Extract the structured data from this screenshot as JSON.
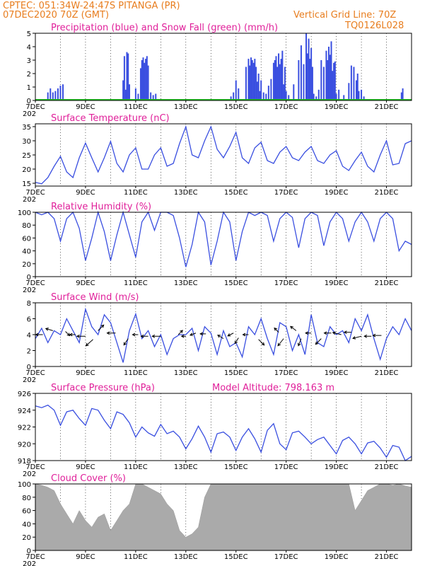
{
  "header": {
    "line1": "CPTEC:   051:34W-24:47S   PITANGA (PR)",
    "line2": "07DEC2020 70Z (GMT)",
    "grid_note": "Vertical Grid Line: 70Z",
    "code": "TQ0126L028"
  },
  "colors": {
    "header": "#e87d1e",
    "title": "#e0209a",
    "series": "#3a4fe0",
    "snow": "#20c020",
    "cloud": "#aaaaaa"
  },
  "x_axis": {
    "ticks": [
      "7DEC",
      "9DEC",
      "11DEC",
      "13DEC",
      "15DEC",
      "17DEC",
      "19DEC",
      "21DEC"
    ],
    "sub": [
      "202",
      "202",
      "202",
      "202",
      "202"
    ],
    "start_day": 7,
    "end_day": 22
  },
  "chart_data": [
    {
      "type": "bar",
      "title": "Precipitation (blue) and Snow Fall (green) (mm/h)",
      "ylim": [
        0,
        5
      ],
      "yticks": [
        "0",
        "1",
        "2",
        "3",
        "4",
        "5"
      ],
      "series": [
        {
          "name": "Precipitation",
          "x": [
            7.5,
            7.6,
            7.7,
            7.8,
            7.9,
            8.0,
            8.1,
            10.5,
            10.55,
            10.6,
            10.65,
            10.7,
            10.75,
            11.0,
            11.1,
            11.2,
            11.25,
            11.3,
            11.35,
            11.4,
            11.45,
            11.5,
            11.6,
            11.7,
            11.8,
            14.8,
            14.9,
            15.0,
            15.1,
            15.4,
            15.5,
            15.55,
            15.6,
            15.65,
            15.7,
            15.75,
            15.8,
            15.85,
            15.9,
            15.95,
            16.0,
            16.1,
            16.2,
            16.3,
            16.4,
            16.5,
            16.55,
            16.6,
            16.65,
            16.7,
            16.75,
            16.8,
            16.85,
            16.9,
            16.95,
            17.0,
            17.1,
            17.3,
            17.5,
            17.6,
            17.7,
            17.8,
            17.85,
            17.9,
            17.95,
            18.0,
            18.05,
            18.1,
            18.2,
            18.3,
            18.4,
            18.5,
            18.6,
            18.65,
            18.7,
            18.75,
            18.8,
            18.85,
            18.9,
            18.95,
            19.0,
            19.1,
            19.3,
            19.5,
            19.6,
            19.7,
            19.8,
            19.85,
            19.9,
            20.0,
            20.1,
            21.6,
            21.65
          ],
          "values": [
            0.6,
            0.9,
            0.6,
            0.7,
            0.9,
            1.1,
            1.2,
            1.5,
            3.3,
            0.8,
            3.6,
            3.5,
            1.2,
            0.9,
            0.5,
            2.4,
            3.0,
            3.2,
            2.8,
            3.1,
            3.3,
            2.6,
            0.6,
            0.4,
            0.5,
            0.3,
            0.6,
            1.5,
            0.9,
            2.5,
            3.1,
            2.6,
            3.2,
            3.0,
            2.8,
            3.1,
            2.5,
            1.4,
            2.0,
            0.7,
            1.5,
            0.6,
            0.5,
            1.1,
            1.6,
            2.8,
            3.0,
            3.3,
            2.5,
            3.5,
            2.7,
            3.1,
            3.7,
            1.2,
            2.5,
            0.7,
            0.4,
            1.2,
            3.0,
            4.1,
            2.7,
            5.0,
            3.5,
            4.6,
            3.1,
            3.9,
            2.5,
            0.5,
            0.3,
            0.8,
            3.0,
            2.5,
            3.7,
            3.0,
            4.0,
            3.4,
            4.4,
            2.2,
            2.8,
            2.9,
            0.5,
            0.8,
            0.4,
            1.3,
            2.6,
            2.5,
            1.5,
            2.0,
            0.7,
            0.8,
            0.3,
            0.6,
            0.9
          ]
        },
        {
          "name": "Snow Fall",
          "x": [],
          "values": []
        }
      ]
    },
    {
      "type": "line",
      "title": "Surface Temperature (nC)",
      "ylim": [
        14,
        36
      ],
      "yticks": [
        "15",
        "20",
        "25",
        "30",
        "35"
      ],
      "x": [
        7.0,
        7.25,
        7.5,
        7.75,
        8.0,
        8.25,
        8.5,
        8.75,
        9.0,
        9.25,
        9.5,
        9.75,
        10.0,
        10.25,
        10.5,
        10.75,
        11.0,
        11.25,
        11.5,
        11.75,
        12.0,
        12.25,
        12.5,
        12.75,
        13.0,
        13.25,
        13.5,
        13.75,
        14.0,
        14.25,
        14.5,
        14.75,
        15.0,
        15.25,
        15.5,
        15.75,
        16.0,
        16.25,
        16.5,
        16.75,
        17.0,
        17.25,
        17.5,
        17.75,
        18.0,
        18.25,
        18.5,
        18.75,
        19.0,
        19.25,
        19.5,
        19.75,
        20.0,
        20.25,
        20.5,
        20.75,
        21.0,
        21.25,
        21.5,
        21.75,
        22.0
      ],
      "values": [
        15.3,
        14.8,
        17.0,
        21.0,
        24.5,
        19.0,
        17.0,
        24.0,
        29.2,
        24.0,
        19.0,
        24.0,
        29.8,
        22.0,
        19.0,
        25.0,
        27.5,
        20.0,
        20.0,
        25.0,
        27.5,
        21.0,
        22.0,
        29.0,
        35.0,
        25.0,
        24.0,
        30.0,
        35.0,
        27.0,
        24.0,
        28.0,
        33.0,
        24.0,
        22.0,
        27.5,
        29.5,
        23.0,
        22.0,
        26.0,
        28.0,
        24.0,
        23.0,
        26.0,
        28.0,
        23.0,
        22.0,
        25.0,
        26.5,
        21.0,
        19.5,
        23.0,
        26.0,
        21.0,
        19.0,
        25.0,
        30.0,
        21.5,
        22.0,
        29.0,
        30.0
      ]
    },
    {
      "type": "line",
      "title": "Relative Humidity (%)",
      "ylim": [
        0,
        100
      ],
      "yticks": [
        "0",
        "20",
        "40",
        "60",
        "80",
        "100"
      ],
      "x": [
        7.0,
        7.25,
        7.5,
        7.75,
        8.0,
        8.25,
        8.5,
        8.75,
        9.0,
        9.25,
        9.5,
        9.75,
        10.0,
        10.25,
        10.5,
        10.75,
        11.0,
        11.25,
        11.5,
        11.75,
        12.0,
        12.25,
        12.5,
        12.75,
        13.0,
        13.25,
        13.5,
        13.75,
        14.0,
        14.25,
        14.5,
        14.75,
        15.0,
        15.25,
        15.5,
        15.75,
        16.0,
        16.25,
        16.5,
        16.75,
        17.0,
        17.25,
        17.5,
        17.75,
        18.0,
        18.25,
        18.5,
        18.75,
        19.0,
        19.25,
        19.5,
        19.75,
        20.0,
        20.25,
        20.5,
        20.75,
        21.0,
        21.25,
        21.5,
        21.75,
        22.0
      ],
      "values": [
        100,
        96,
        100,
        90,
        55,
        90,
        100,
        75,
        25,
        60,
        100,
        70,
        25,
        65,
        100,
        65,
        30,
        85,
        100,
        72,
        100,
        100,
        95,
        60,
        15,
        50,
        100,
        85,
        18,
        55,
        100,
        85,
        25,
        70,
        100,
        95,
        100,
        95,
        55,
        90,
        100,
        92,
        45,
        90,
        100,
        95,
        48,
        85,
        100,
        90,
        55,
        85,
        100,
        85,
        55,
        90,
        100,
        90,
        40,
        55,
        50
      ]
    },
    {
      "type": "line",
      "title": "Surface Wind (m/s)",
      "ylim": [
        0,
        8
      ],
      "yticks": [
        "0",
        "2",
        "4",
        "6",
        "8"
      ],
      "x": [
        7.0,
        7.25,
        7.5,
        7.75,
        8.0,
        8.25,
        8.5,
        8.75,
        9.0,
        9.25,
        9.5,
        9.75,
        10.0,
        10.25,
        10.5,
        10.75,
        11.0,
        11.25,
        11.5,
        11.75,
        12.0,
        12.25,
        12.5,
        12.75,
        13.0,
        13.25,
        13.5,
        13.75,
        14.0,
        14.25,
        14.5,
        14.75,
        15.0,
        15.25,
        15.5,
        15.75,
        16.0,
        16.25,
        16.5,
        16.75,
        17.0,
        17.25,
        17.5,
        17.75,
        18.0,
        18.25,
        18.5,
        18.75,
        19.0,
        19.25,
        19.5,
        19.75,
        20.0,
        20.25,
        20.5,
        20.75,
        21.0,
        21.25,
        21.5,
        21.75,
        22.0
      ],
      "values": [
        3.5,
        4.8,
        3.0,
        4.5,
        4.0,
        6.0,
        4.5,
        3.0,
        7.2,
        5.0,
        4.0,
        6.5,
        5.5,
        3.0,
        0.5,
        4.5,
        6.6,
        3.5,
        4.5,
        2.5,
        4.0,
        1.5,
        3.5,
        4.0,
        4.0,
        4.8,
        2.0,
        5.0,
        4.2,
        1.5,
        4.5,
        2.5,
        3.0,
        1.2,
        5.0,
        4.0,
        6.0,
        3.5,
        1.5,
        5.5,
        5.0,
        2.0,
        4.0,
        1.5,
        6.5,
        3.0,
        2.5,
        5.0,
        4.0,
        4.5,
        3.0,
        6.0,
        4.5,
        6.5,
        3.5,
        0.9,
        3.5,
        5.0,
        4.0,
        6.0,
        4.5
      ],
      "arrows": [
        [
          7.3,
          4.0,
          -10,
          0
        ],
        [
          7.7,
          4.5,
          -10,
          -3
        ],
        [
          8.2,
          4.4,
          6,
          6
        ],
        [
          8.6,
          4.0,
          -8,
          0
        ],
        [
          9.0,
          3.8,
          -12,
          0
        ],
        [
          9.3,
          3.4,
          -10,
          9
        ],
        [
          9.5,
          4.5,
          8,
          -8
        ],
        [
          10.2,
          4.2,
          -12,
          0
        ],
        [
          10.7,
          3.5,
          -6,
          9
        ],
        [
          11.1,
          4.0,
          -8,
          0
        ],
        [
          11.5,
          3.8,
          -10,
          0
        ],
        [
          12.0,
          3.8,
          -12,
          0
        ],
        [
          12.7,
          4.0,
          6,
          -6
        ],
        [
          13.0,
          3.8,
          -6,
          0
        ],
        [
          13.4,
          4.2,
          -8,
          3
        ],
        [
          13.8,
          4.1,
          -8,
          0
        ],
        [
          14.5,
          3.5,
          -8,
          -5
        ],
        [
          14.9,
          4.2,
          -8,
          4
        ],
        [
          15.1,
          3.6,
          -5,
          8
        ],
        [
          15.5,
          4.0,
          -8,
          0
        ],
        [
          15.9,
          3.4,
          8,
          8
        ],
        [
          16.7,
          4.3,
          -6,
          -6
        ],
        [
          16.9,
          3.5,
          -8,
          10
        ],
        [
          17.4,
          4.5,
          -8,
          -6
        ],
        [
          17.6,
          3.5,
          -4,
          10
        ],
        [
          18.0,
          4.2,
          -8,
          0
        ],
        [
          18.4,
          3.5,
          -8,
          8
        ],
        [
          18.8,
          4.2,
          -10,
          0
        ],
        [
          19.2,
          4.0,
          -12,
          -3
        ],
        [
          19.6,
          4.3,
          -10,
          0
        ],
        [
          20.0,
          3.8,
          -12,
          3
        ],
        [
          20.4,
          3.8,
          -10,
          0
        ],
        [
          20.8,
          3.9,
          -12,
          0
        ]
      ]
    },
    {
      "type": "line",
      "title": "Surface Pressure (hPa)",
      "subtitle": "Model Altitude: 798.163 m",
      "ylim": [
        918,
        926
      ],
      "yticks": [
        "918",
        "920",
        "922",
        "924",
        "926"
      ],
      "x": [
        7.0,
        7.25,
        7.5,
        7.75,
        8.0,
        8.25,
        8.5,
        8.75,
        9.0,
        9.25,
        9.5,
        9.75,
        10.0,
        10.25,
        10.5,
        10.75,
        11.0,
        11.25,
        11.5,
        11.75,
        12.0,
        12.25,
        12.5,
        12.75,
        13.0,
        13.25,
        13.5,
        13.75,
        14.0,
        14.25,
        14.5,
        14.75,
        15.0,
        15.25,
        15.5,
        15.75,
        16.0,
        16.25,
        16.5,
        16.75,
        17.0,
        17.25,
        17.5,
        17.75,
        18.0,
        18.25,
        18.5,
        18.75,
        19.0,
        19.25,
        19.5,
        19.75,
        20.0,
        20.25,
        20.5,
        20.75,
        21.0,
        21.25,
        21.5,
        21.75,
        22.0
      ],
      "values": [
        924.5,
        924.3,
        924.6,
        924.0,
        922.2,
        923.8,
        924.0,
        923.0,
        922.2,
        924.2,
        924.0,
        922.8,
        921.8,
        923.8,
        923.5,
        922.5,
        920.8,
        922.0,
        921.3,
        920.9,
        922.3,
        921.2,
        921.5,
        920.8,
        919.4,
        920.6,
        922.1,
        920.8,
        919.0,
        921.2,
        921.4,
        920.8,
        919.2,
        920.8,
        921.8,
        920.6,
        919.0,
        921.6,
        922.4,
        920.0,
        919.3,
        921.3,
        921.5,
        920.8,
        920.0,
        920.5,
        920.8,
        919.8,
        918.8,
        920.4,
        920.8,
        920.0,
        918.8,
        920.1,
        920.3,
        919.5,
        918.4,
        919.8,
        919.6,
        918.0,
        918.5
      ]
    },
    {
      "type": "area",
      "title": "Cloud Cover (%)",
      "ylim": [
        0,
        100
      ],
      "yticks": [
        "0",
        "20",
        "40",
        "60",
        "80",
        "100"
      ],
      "x": [
        7.0,
        7.25,
        7.5,
        7.75,
        8.0,
        8.25,
        8.5,
        8.75,
        9.0,
        9.25,
        9.5,
        9.75,
        10.0,
        10.25,
        10.5,
        10.75,
        11.0,
        11.25,
        11.5,
        11.75,
        12.0,
        12.25,
        12.5,
        12.75,
        13.0,
        13.25,
        13.5,
        13.75,
        14.0,
        14.25,
        14.5,
        14.75,
        15.0,
        15.25,
        15.5,
        15.75,
        16.0,
        16.25,
        16.5,
        16.75,
        17.0,
        17.25,
        17.5,
        17.75,
        18.0,
        18.25,
        18.5,
        18.75,
        19.0,
        19.25,
        19.5,
        19.75,
        20.0,
        20.25,
        20.5,
        20.75,
        21.0,
        21.25,
        21.5,
        21.75,
        22.0
      ],
      "values": [
        100,
        98,
        95,
        90,
        70,
        55,
        40,
        60,
        45,
        35,
        50,
        55,
        30,
        45,
        60,
        70,
        100,
        100,
        95,
        90,
        85,
        70,
        60,
        30,
        20,
        25,
        35,
        80,
        100,
        100,
        100,
        100,
        100,
        100,
        100,
        100,
        100,
        100,
        100,
        100,
        100,
        100,
        100,
        100,
        100,
        100,
        100,
        100,
        100,
        100,
        100,
        60,
        75,
        90,
        95,
        100,
        100,
        98,
        100,
        97,
        95
      ]
    }
  ]
}
